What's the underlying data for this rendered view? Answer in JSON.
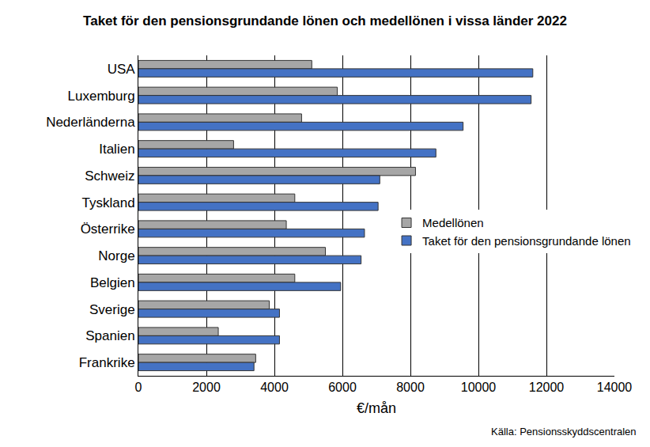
{
  "chart_data": {
    "type": "bar",
    "orientation": "horizontal",
    "title": "Taket för den pensionsgrundande lönen och medellönen i vissa länder 2022",
    "xlabel": "€/mån",
    "annotations": [
      {
        "text": "Källa: Pensionsskyddscentralen"
      }
    ],
    "categories": [
      "USA",
      "Luxemburg",
      "Nederländerna",
      "Italien",
      "Schweiz",
      "Tyskland",
      "Österrike",
      "Norge",
      "Belgien",
      "Sverige",
      "Spanien",
      "Frankrike"
    ],
    "series": [
      {
        "name": "Medellönen",
        "color": "#a6a6a6",
        "values": [
          5100,
          5850,
          4800,
          2800,
          8150,
          4600,
          4350,
          5500,
          4600,
          3850,
          2350,
          3450
        ]
      },
      {
        "name": "Taket för den pensionsgrundande lönen",
        "color": "#4472c4",
        "values": [
          11600,
          11550,
          9550,
          8750,
          7100,
          7050,
          6650,
          6550,
          5950,
          4150,
          4150,
          3400
        ]
      }
    ],
    "xlim": [
      0,
      14000
    ],
    "xticks": [
      0,
      2000,
      4000,
      6000,
      8000,
      10000,
      12000,
      14000
    ],
    "grid": true,
    "legend": "right"
  }
}
